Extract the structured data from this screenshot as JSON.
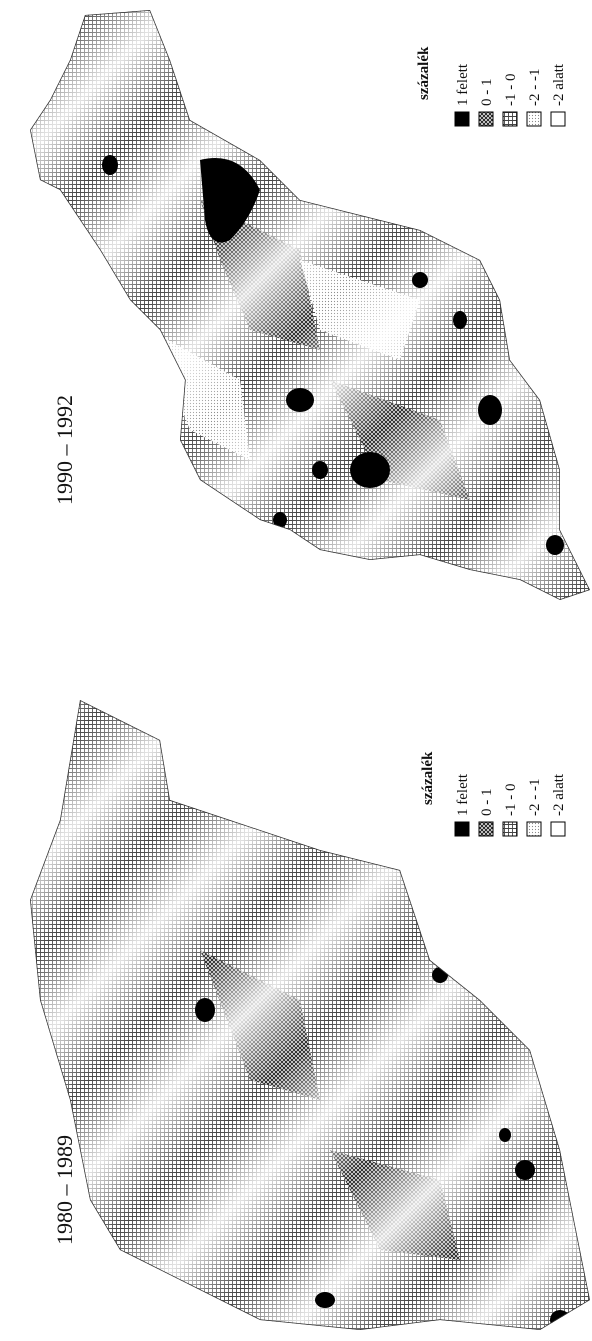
{
  "maps": [
    {
      "title": "1990 – 1992",
      "legend": {
        "title": "százalék",
        "items": [
          "1 felett",
          "0 - 1",
          "-1 - 0",
          "-2 - -1",
          "-2 alatt"
        ]
      }
    },
    {
      "title": "1980 – 1989",
      "legend": {
        "title": "százalék",
        "items": [
          "1 felett",
          "0 - 1",
          "-1 - 0",
          "-2 - -1",
          "-2 alatt"
        ]
      }
    }
  ]
}
